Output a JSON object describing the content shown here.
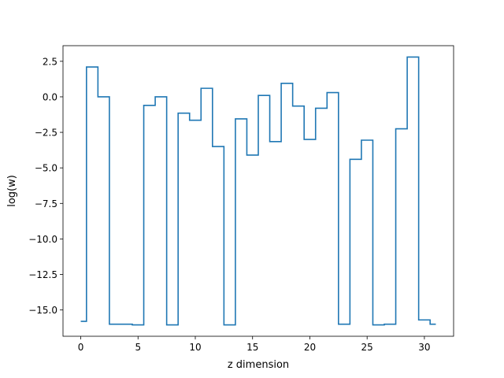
{
  "chart_data": {
    "type": "line",
    "drawstyle": "steps-mid",
    "title": "",
    "xlabel": "z dimension",
    "ylabel": "log(w)",
    "xlim": [
      -1.55,
      32.55
    ],
    "ylim": [
      -16.85,
      3.6
    ],
    "xticks": [
      0,
      5,
      10,
      15,
      20,
      25,
      30
    ],
    "xtick_labels": [
      "0",
      "5",
      "10",
      "15",
      "20",
      "25",
      "30"
    ],
    "yticks": [
      2.5,
      0.0,
      -2.5,
      -5.0,
      -7.5,
      -10.0,
      -12.5,
      -15.0
    ],
    "ytick_labels": [
      "2.5",
      "0.0",
      "−2.5",
      "−5.0",
      "−7.5",
      "−10.0",
      "−12.5",
      "−15.0"
    ],
    "grid": false,
    "line_color": "#1f77b4",
    "series": [
      {
        "x": [
          0,
          1,
          2,
          3,
          4,
          5,
          6,
          7,
          8,
          9,
          10,
          11,
          12,
          13,
          14,
          15,
          16,
          17,
          18,
          19,
          20,
          21,
          22,
          23,
          24,
          25,
          26,
          27,
          28,
          29,
          30,
          31
        ],
        "values": [
          -15.8,
          2.1,
          0.0,
          -16.0,
          -16.0,
          -16.05,
          -0.6,
          0.0,
          -16.05,
          -1.15,
          -1.65,
          0.6,
          -3.5,
          -16.05,
          -1.55,
          -4.1,
          0.1,
          -3.15,
          0.95,
          -0.65,
          -3.0,
          -0.8,
          0.3,
          -16.0,
          -4.4,
          -3.05,
          -16.05,
          -16.0,
          -2.25,
          2.8,
          -15.7,
          -16.0
        ]
      }
    ]
  }
}
